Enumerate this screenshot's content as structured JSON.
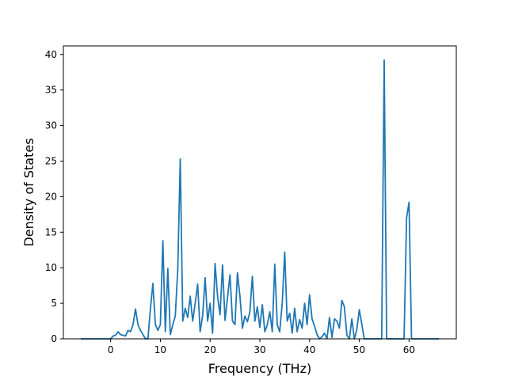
{
  "chart_data": {
    "type": "line",
    "title": "",
    "xlabel": "Frequency (THz)",
    "ylabel": "Density of States",
    "xlim": [
      -9.5,
      69.5
    ],
    "ylim": [
      0,
      41.2
    ],
    "xticks": [
      0,
      10,
      20,
      30,
      40,
      50,
      60
    ],
    "yticks": [
      0,
      5,
      10,
      15,
      20,
      25,
      30,
      35,
      40
    ],
    "grid": false,
    "legend": "none",
    "series": [
      {
        "color": "#1f77b4",
        "x": [
          -6.0,
          -5.0,
          -4.0,
          -3.0,
          -2.0,
          -1.0,
          0.0,
          0.5,
          1.0,
          1.5,
          2.0,
          2.5,
          3.0,
          3.5,
          4.0,
          4.5,
          5.0,
          5.5,
          6.0,
          6.5,
          7.0,
          7.5,
          8.0,
          8.5,
          9.0,
          9.5,
          10.0,
          10.5,
          11.0,
          11.5,
          12.0,
          12.5,
          13.0,
          13.5,
          14.0,
          14.5,
          15.0,
          15.5,
          16.0,
          16.5,
          17.0,
          17.5,
          18.0,
          18.5,
          19.0,
          19.5,
          20.0,
          20.5,
          21.0,
          21.5,
          22.0,
          22.5,
          23.0,
          23.5,
          24.0,
          24.5,
          25.0,
          25.5,
          26.0,
          26.5,
          27.0,
          27.5,
          28.0,
          28.5,
          29.0,
          29.5,
          30.0,
          30.5,
          31.0,
          31.5,
          32.0,
          32.5,
          33.0,
          33.5,
          34.0,
          34.5,
          35.0,
          35.5,
          36.0,
          36.5,
          37.0,
          37.5,
          38.0,
          38.5,
          39.0,
          39.5,
          40.0,
          40.5,
          41.0,
          41.5,
          42.0,
          42.5,
          43.0,
          43.5,
          44.0,
          44.5,
          45.0,
          45.5,
          46.0,
          46.5,
          47.0,
          47.5,
          48.0,
          48.5,
          49.0,
          49.5,
          50.0,
          51.0,
          52.0,
          53.0,
          54.0,
          54.5,
          55.0,
          55.5,
          56.0,
          57.0,
          58.0,
          59.0,
          59.5,
          60.0,
          60.5,
          61.0,
          62.0,
          63.0,
          64.0,
          65.0,
          66.0
        ],
        "y": [
          0,
          0,
          0,
          0,
          0,
          0,
          0,
          0.4,
          0.5,
          1.0,
          0.6,
          0.5,
          0.4,
          1.2,
          1.0,
          2.0,
          4.2,
          2.0,
          1.2,
          0.6,
          0,
          0,
          4.2,
          7.8,
          2.0,
          1.2,
          2.0,
          13.8,
          1.0,
          9.9,
          0.6,
          2.0,
          3.2,
          9.8,
          25.3,
          2.5,
          4.3,
          3.0,
          6.0,
          2.5,
          5.0,
          7.7,
          1.0,
          3.3,
          8.6,
          2.5,
          5.0,
          0.8,
          10.6,
          6.0,
          3.4,
          10.4,
          2.6,
          5.8,
          9.0,
          2.5,
          2.0,
          9.3,
          6.0,
          1.5,
          3.2,
          2.4,
          3.8,
          8.8,
          2.5,
          4.5,
          1.6,
          4.8,
          1.0,
          2.0,
          3.8,
          1.0,
          10.5,
          2.0,
          1.0,
          5.0,
          12.2,
          2.5,
          3.6,
          0.8,
          4.3,
          1.0,
          2.7,
          1.5,
          5.0,
          2.0,
          6.2,
          2.8,
          1.8,
          0.6,
          0,
          0.3,
          0.8,
          0,
          3.0,
          0.2,
          2.8,
          2.5,
          1.5,
          5.4,
          4.5,
          0.5,
          0,
          2.8,
          0,
          1.3,
          4.1,
          0,
          0,
          0,
          0,
          0,
          39.2,
          0,
          0,
          0,
          0,
          0,
          17.0,
          19.2,
          0,
          0,
          0,
          0,
          0,
          0,
          0
        ]
      }
    ]
  }
}
